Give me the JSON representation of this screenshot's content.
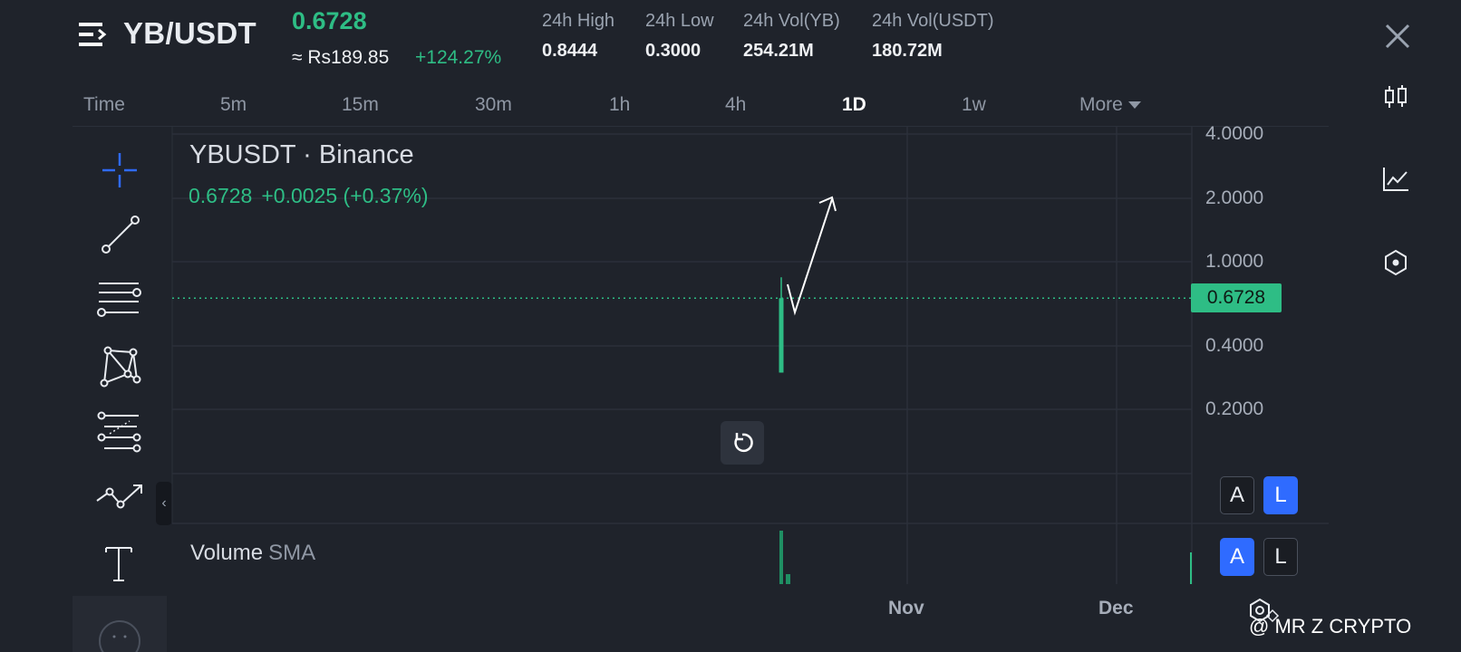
{
  "header": {
    "pair": "YB/USDT",
    "last_price": "0.6728",
    "approx_local": "≈ Rs189.85",
    "change_pct": "+124.27%",
    "stats": [
      {
        "label": "24h High",
        "value": "0.8444"
      },
      {
        "label": "24h Low",
        "value": "0.3000"
      },
      {
        "label": "24h Vol(YB)",
        "value": "254.21M"
      },
      {
        "label": "24h Vol(USDT)",
        "value": "180.72M"
      }
    ]
  },
  "timeframes": {
    "items": [
      "Time",
      "5m",
      "15m",
      "30m",
      "1h",
      "4h",
      "1D",
      "1w"
    ],
    "active": "1D",
    "more_label": "More"
  },
  "chart": {
    "title": "YBUSDT · Binance",
    "legend_price": "0.6728",
    "legend_change": "+0.0025 (+0.37%)",
    "y_ticks": [
      "4.0000",
      "2.0000",
      "1.0000",
      "0.4000",
      "0.2000"
    ],
    "current_price_tag": "0.6728",
    "x_ticks": [
      "Nov",
      "Dec"
    ],
    "volume_label": "Volume",
    "volume_sma_label": "SMA",
    "scale_toggle_upper": {
      "a": "A",
      "l": "L",
      "active": "L"
    },
    "scale_toggle_lower": {
      "a": "A",
      "l": "L",
      "active": "A"
    },
    "up_color": "#2ebd85"
  },
  "chart_data": {
    "type": "candlestick",
    "title": "YBUSDT · Binance",
    "y_scale": "log",
    "y_ticks": [
      4.0,
      2.0,
      1.0,
      0.4,
      0.2
    ],
    "x_ticks": [
      "Nov",
      "Dec"
    ],
    "candles": [
      {
        "open": 0.3,
        "high": 0.8444,
        "low": 0.3,
        "close": 0.6728
      }
    ],
    "current_price": 0.6728
  },
  "tools": [
    "crosshair-icon",
    "trend-line-icon",
    "horizontal-lines-icon",
    "pattern-icon",
    "fib-icon",
    "path-icon",
    "text-icon"
  ],
  "right_rail": [
    "candlestick-chart-icon",
    "line-chart-icon",
    "indicator-icon"
  ],
  "watermark": "@ MR Z CRYPTO"
}
